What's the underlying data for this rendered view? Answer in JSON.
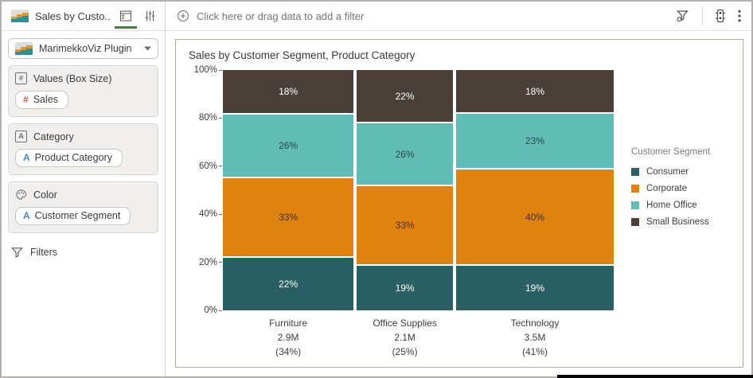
{
  "app": {
    "accent_green": "#44813c",
    "selection_border_color": "#a5b49b"
  },
  "sidebar": {
    "title": "Sales by Custo...",
    "tabs": [
      {
        "name": "grammar-tab",
        "active": true
      },
      {
        "name": "properties-tab",
        "active": false
      }
    ],
    "viz_picker": {
      "label": "MarimekkoViz Plugin"
    },
    "sections": [
      {
        "label": "Values (Box Size)",
        "glyph": "#",
        "pill": {
          "label": "Sales",
          "glyph": "#",
          "glyph_color": "#d9573c"
        }
      },
      {
        "label": "Category",
        "glyph": "A",
        "pill": {
          "label": "Product Category",
          "glyph": "A",
          "glyph_color": "#4e87bd"
        }
      },
      {
        "label": "Color",
        "glyph": "",
        "pill": {
          "label": "Customer Segment",
          "glyph": "A",
          "glyph_color": "#4e87bd"
        }
      }
    ],
    "filters_label": "Filters"
  },
  "filter_bar": {
    "prompt": "Click here or drag data to add a filter"
  },
  "chart_data": {
    "type": "marimekko",
    "title": "Sales by Customer Segment, Product Category",
    "legend_title": "Customer Segment",
    "legend_position": "right",
    "ylim": [
      0,
      100
    ],
    "y_ticks": [
      "100%",
      "80%",
      "60%",
      "40%",
      "20%",
      "0%"
    ],
    "stack_order": "bottom-to-top",
    "series": [
      {
        "name": "Consumer",
        "color": "#2a5f63",
        "label_color": "#ffffff"
      },
      {
        "name": "Corporate",
        "color": "#e0820f",
        "label_color": "#3f3428"
      },
      {
        "name": "Home Office",
        "color": "#60bcb5",
        "label_color": "#274a4b"
      },
      {
        "name": "Small Business",
        "color": "#4a4039",
        "label_color": "#ffffff"
      }
    ],
    "categories": [
      {
        "name": "Furniture",
        "total": "2.9M",
        "share": "(34%)",
        "width_pct": 34,
        "values_pct": [
          22,
          33,
          26,
          18
        ]
      },
      {
        "name": "Office Supplies",
        "total": "2.1M",
        "share": "(25%)",
        "width_pct": 25,
        "values_pct": [
          19,
          33,
          26,
          22
        ]
      },
      {
        "name": "Technology",
        "total": "3.5M",
        "share": "(41%)",
        "width_pct": 41,
        "values_pct": [
          19,
          40,
          23,
          18
        ]
      }
    ]
  }
}
